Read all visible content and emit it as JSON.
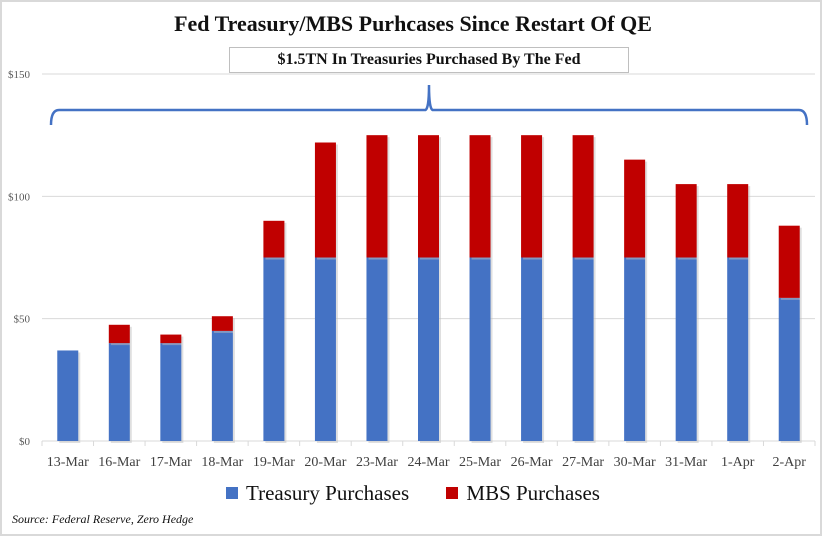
{
  "chart_data": {
    "type": "bar",
    "stacked": true,
    "title": "Fed Treasury/MBS Purhcases Since Restart Of QE",
    "annotation": "$1.5TN In Treasuries Purchased By The Fed",
    "categories": [
      "13-Mar",
      "16-Mar",
      "17-Mar",
      "18-Mar",
      "19-Mar",
      "20-Mar",
      "23-Mar",
      "24-Mar",
      "25-Mar",
      "26-Mar",
      "27-Mar",
      "30-Mar",
      "31-Mar",
      "1-Apr",
      "2-Apr"
    ],
    "series": [
      {
        "name": "Treasury Purchases",
        "color": "#4472c4",
        "values": [
          37,
          40,
          40,
          45,
          75,
          75,
          75,
          75,
          75,
          75,
          75,
          75,
          75,
          75,
          58.5
        ]
      },
      {
        "name": "MBS Purchases",
        "color": "#c00000",
        "values": [
          0,
          7.5,
          3.5,
          6,
          15,
          47,
          50,
          50,
          50,
          50,
          50,
          40,
          30,
          30,
          29.5
        ]
      }
    ],
    "yticks": [
      "$0",
      "$50",
      "$100",
      "$150"
    ],
    "ytick_values": [
      0,
      50,
      100,
      150
    ],
    "ylim": [
      0,
      150
    ],
    "grid": true,
    "legend_position": "bottom",
    "source": "Source: Federal Reserve, Zero Hedge"
  }
}
